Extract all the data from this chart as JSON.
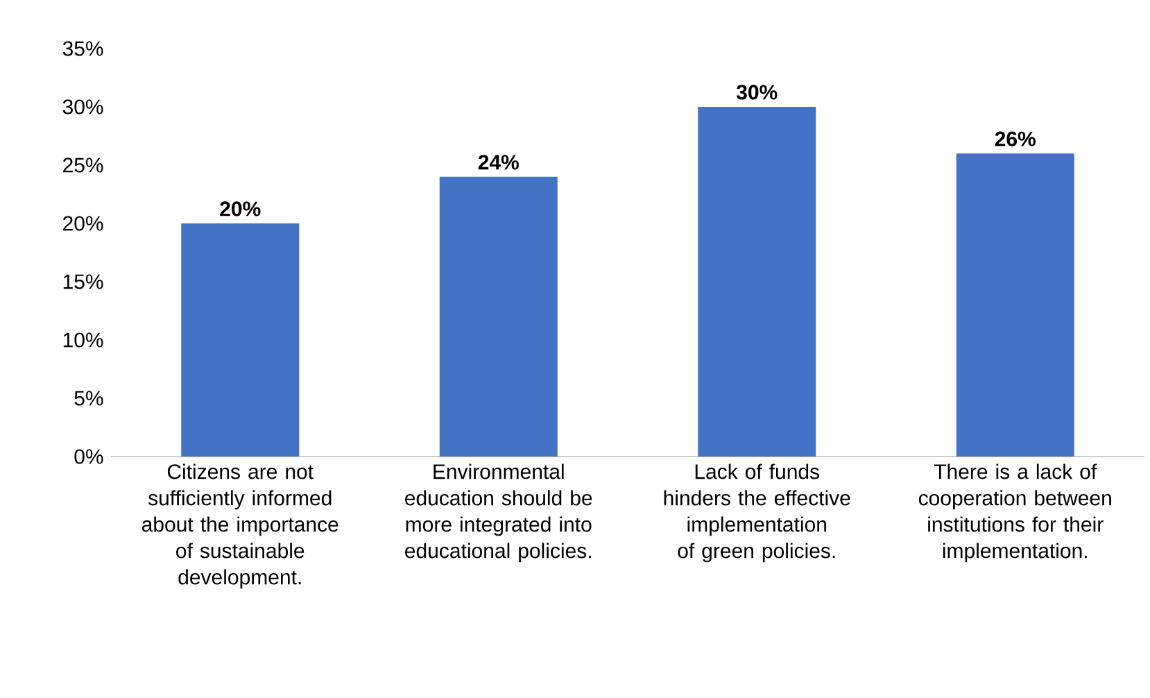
{
  "chart_data": {
    "type": "bar",
    "categories": [
      "Citizens are not sufficiently informed about the importance of sustainable development.",
      "Environmental education should be more integrated into educational policies.",
      "Lack of funds hinders the effective implementation of green policies.",
      "There is a lack of cooperation between institutions for their implementation."
    ],
    "values": [
      20,
      24,
      30,
      26
    ],
    "value_labels": [
      "20%",
      "24%",
      "30%",
      "26%"
    ],
    "color": "#4472c4",
    "ylim": [
      0,
      35
    ],
    "yticks": [
      {
        "value": 0,
        "label": "0%"
      },
      {
        "value": 5,
        "label": "5%"
      },
      {
        "value": 10,
        "label": "10%"
      },
      {
        "value": 15,
        "label": "15%"
      },
      {
        "value": 20,
        "label": "20%"
      },
      {
        "value": 25,
        "label": "25%"
      },
      {
        "value": 30,
        "label": "30%"
      },
      {
        "value": 35,
        "label": "35%"
      }
    ],
    "grid": false
  }
}
